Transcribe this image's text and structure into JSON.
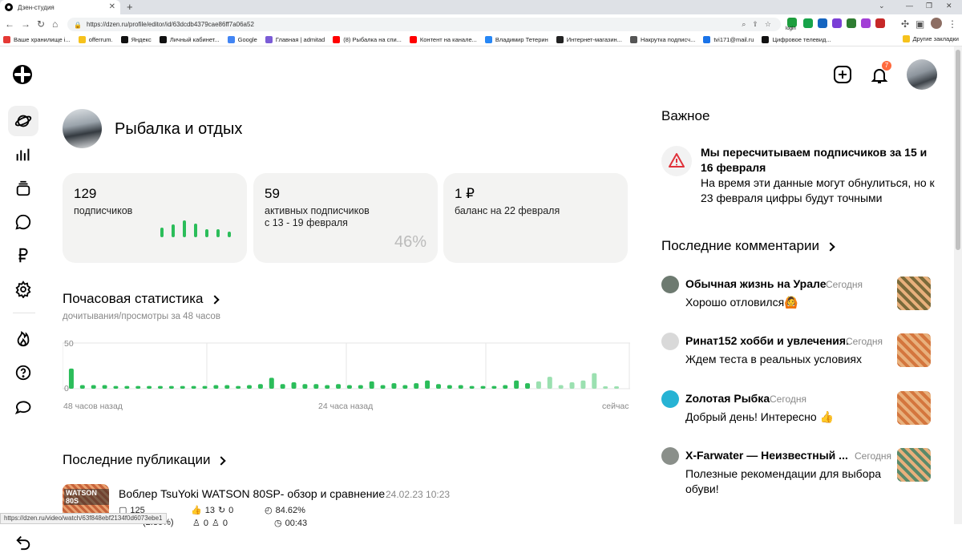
{
  "browser": {
    "tab_title": "Дзен-студия",
    "url": "https://dzen.ru/profile/editor/id/63dcdb4379cae86ff7a06a52",
    "ext_login_label": "login",
    "bookmarks": [
      {
        "label": "Ваше хранилище i...",
        "color": "#e53935"
      },
      {
        "label": "offerrum.",
        "color": "#f6c21c"
      },
      {
        "label": "Яндекс",
        "color": "#111111"
      },
      {
        "label": "Личный кабинет...",
        "color": "#111111"
      },
      {
        "label": "Google",
        "color": "#4285f4"
      },
      {
        "label": "Главная | admitad",
        "color": "#7b5cd6"
      },
      {
        "label": "(8) Рыбалка на спи...",
        "color": "#ff0000"
      },
      {
        "label": "Контент на канале...",
        "color": "#ff0000"
      },
      {
        "label": "Владимир Тетерин",
        "color": "#2787f5"
      },
      {
        "label": "Интернет-магазин...",
        "color": "#222222"
      },
      {
        "label": "Накрутка подписч...",
        "color": "#555555"
      },
      {
        "label": "tvi171@mail.ru",
        "color": "#1a73e8"
      },
      {
        "label": "Цифровое телевид...",
        "color": "#111111"
      }
    ],
    "other_bookmarks": "Другие закладки",
    "status_url": "https://dzen.ru/video/watch/63f848ebf2134f0d6073ebe1"
  },
  "header": {
    "notification_count": "7"
  },
  "channel": {
    "name": "Рыбалка и отдых"
  },
  "stats": {
    "subscribers": {
      "value": "129",
      "label": "подписчиков"
    },
    "active": {
      "value": "59",
      "label": "активных подписчиков",
      "period": "с 13 - 19 февраля",
      "percent": "46%"
    },
    "balance": {
      "value": "1 ₽",
      "label": "баланс на 22 февраля"
    }
  },
  "hourly": {
    "title": "Почасовая статистика",
    "subtitle": "дочитывания/просмотры за 48 часов"
  },
  "chart_data": {
    "type": "bar",
    "title": "Почасовая статистика",
    "y_ticks": [
      "50",
      "0"
    ],
    "ylim": [
      0,
      50
    ],
    "x_labels": [
      "48 часов назад",
      "24 часа назад",
      "сейчас"
    ],
    "colors": {
      "main": "#2bbd5a",
      "recent": "#9be0b0"
    },
    "values": [
      22,
      4,
      4,
      4,
      3,
      3,
      3,
      3,
      3,
      3,
      3,
      3,
      3,
      4,
      4,
      3,
      4,
      5,
      12,
      5,
      7,
      5,
      5,
      4,
      5,
      4,
      4,
      8,
      4,
      6,
      4,
      6,
      9,
      5,
      4,
      4,
      3,
      3,
      3,
      4,
      9,
      6,
      8,
      13,
      4,
      7,
      9,
      17,
      2,
      2
    ]
  },
  "publications": {
    "title": "Последние публикации",
    "item": {
      "thumb_text": "WATSON 80S",
      "title": "Воблер TsuYoki WATSON 80SP- обзор и сравнение",
      "date": "24.02.23 10:23",
      "views": "125",
      "likes": "13",
      "reposts": "0",
      "percent": "84.62%",
      "row2_a": "(2.80%)",
      "row2_b": "0",
      "row2_c": "0",
      "duration": "00:43"
    }
  },
  "important": {
    "title": "Важное",
    "alert_title": "Мы пересчитываем подписчиков за 15 и 16 февраля",
    "alert_body": "На время эти данные могут обнулиться, но к 23 февраля цифры будут точными"
  },
  "comments": {
    "title": "Последние комментарии",
    "items": [
      {
        "name": "Обычная жизнь на Урале",
        "time": "Сегодня",
        "text": "Хорошо отловился🙆",
        "avatar_color": "#6d7a70",
        "thumb_color": "#7a6a3a"
      },
      {
        "name": "Ринат152 хобби и увлечения.",
        "time": "Сегодня",
        "text": "Ждем теста в реальных условиях",
        "avatar_color": "#d9d9d9",
        "thumb_color": "#d4763e"
      },
      {
        "name": "Zолотая Рыбка",
        "time": "Сегодня",
        "text": "Добрый день! Интересно 👍",
        "avatar_color": "#27b3d4",
        "thumb_color": "#d4763e"
      },
      {
        "name": "X-Farwater — Неизвестный ...",
        "time": "Сегодня",
        "text": "Полезные рекомендации для выбора обуви!",
        "avatar_color": "#8a8f8a",
        "thumb_color": "#5a8a6a"
      }
    ]
  }
}
